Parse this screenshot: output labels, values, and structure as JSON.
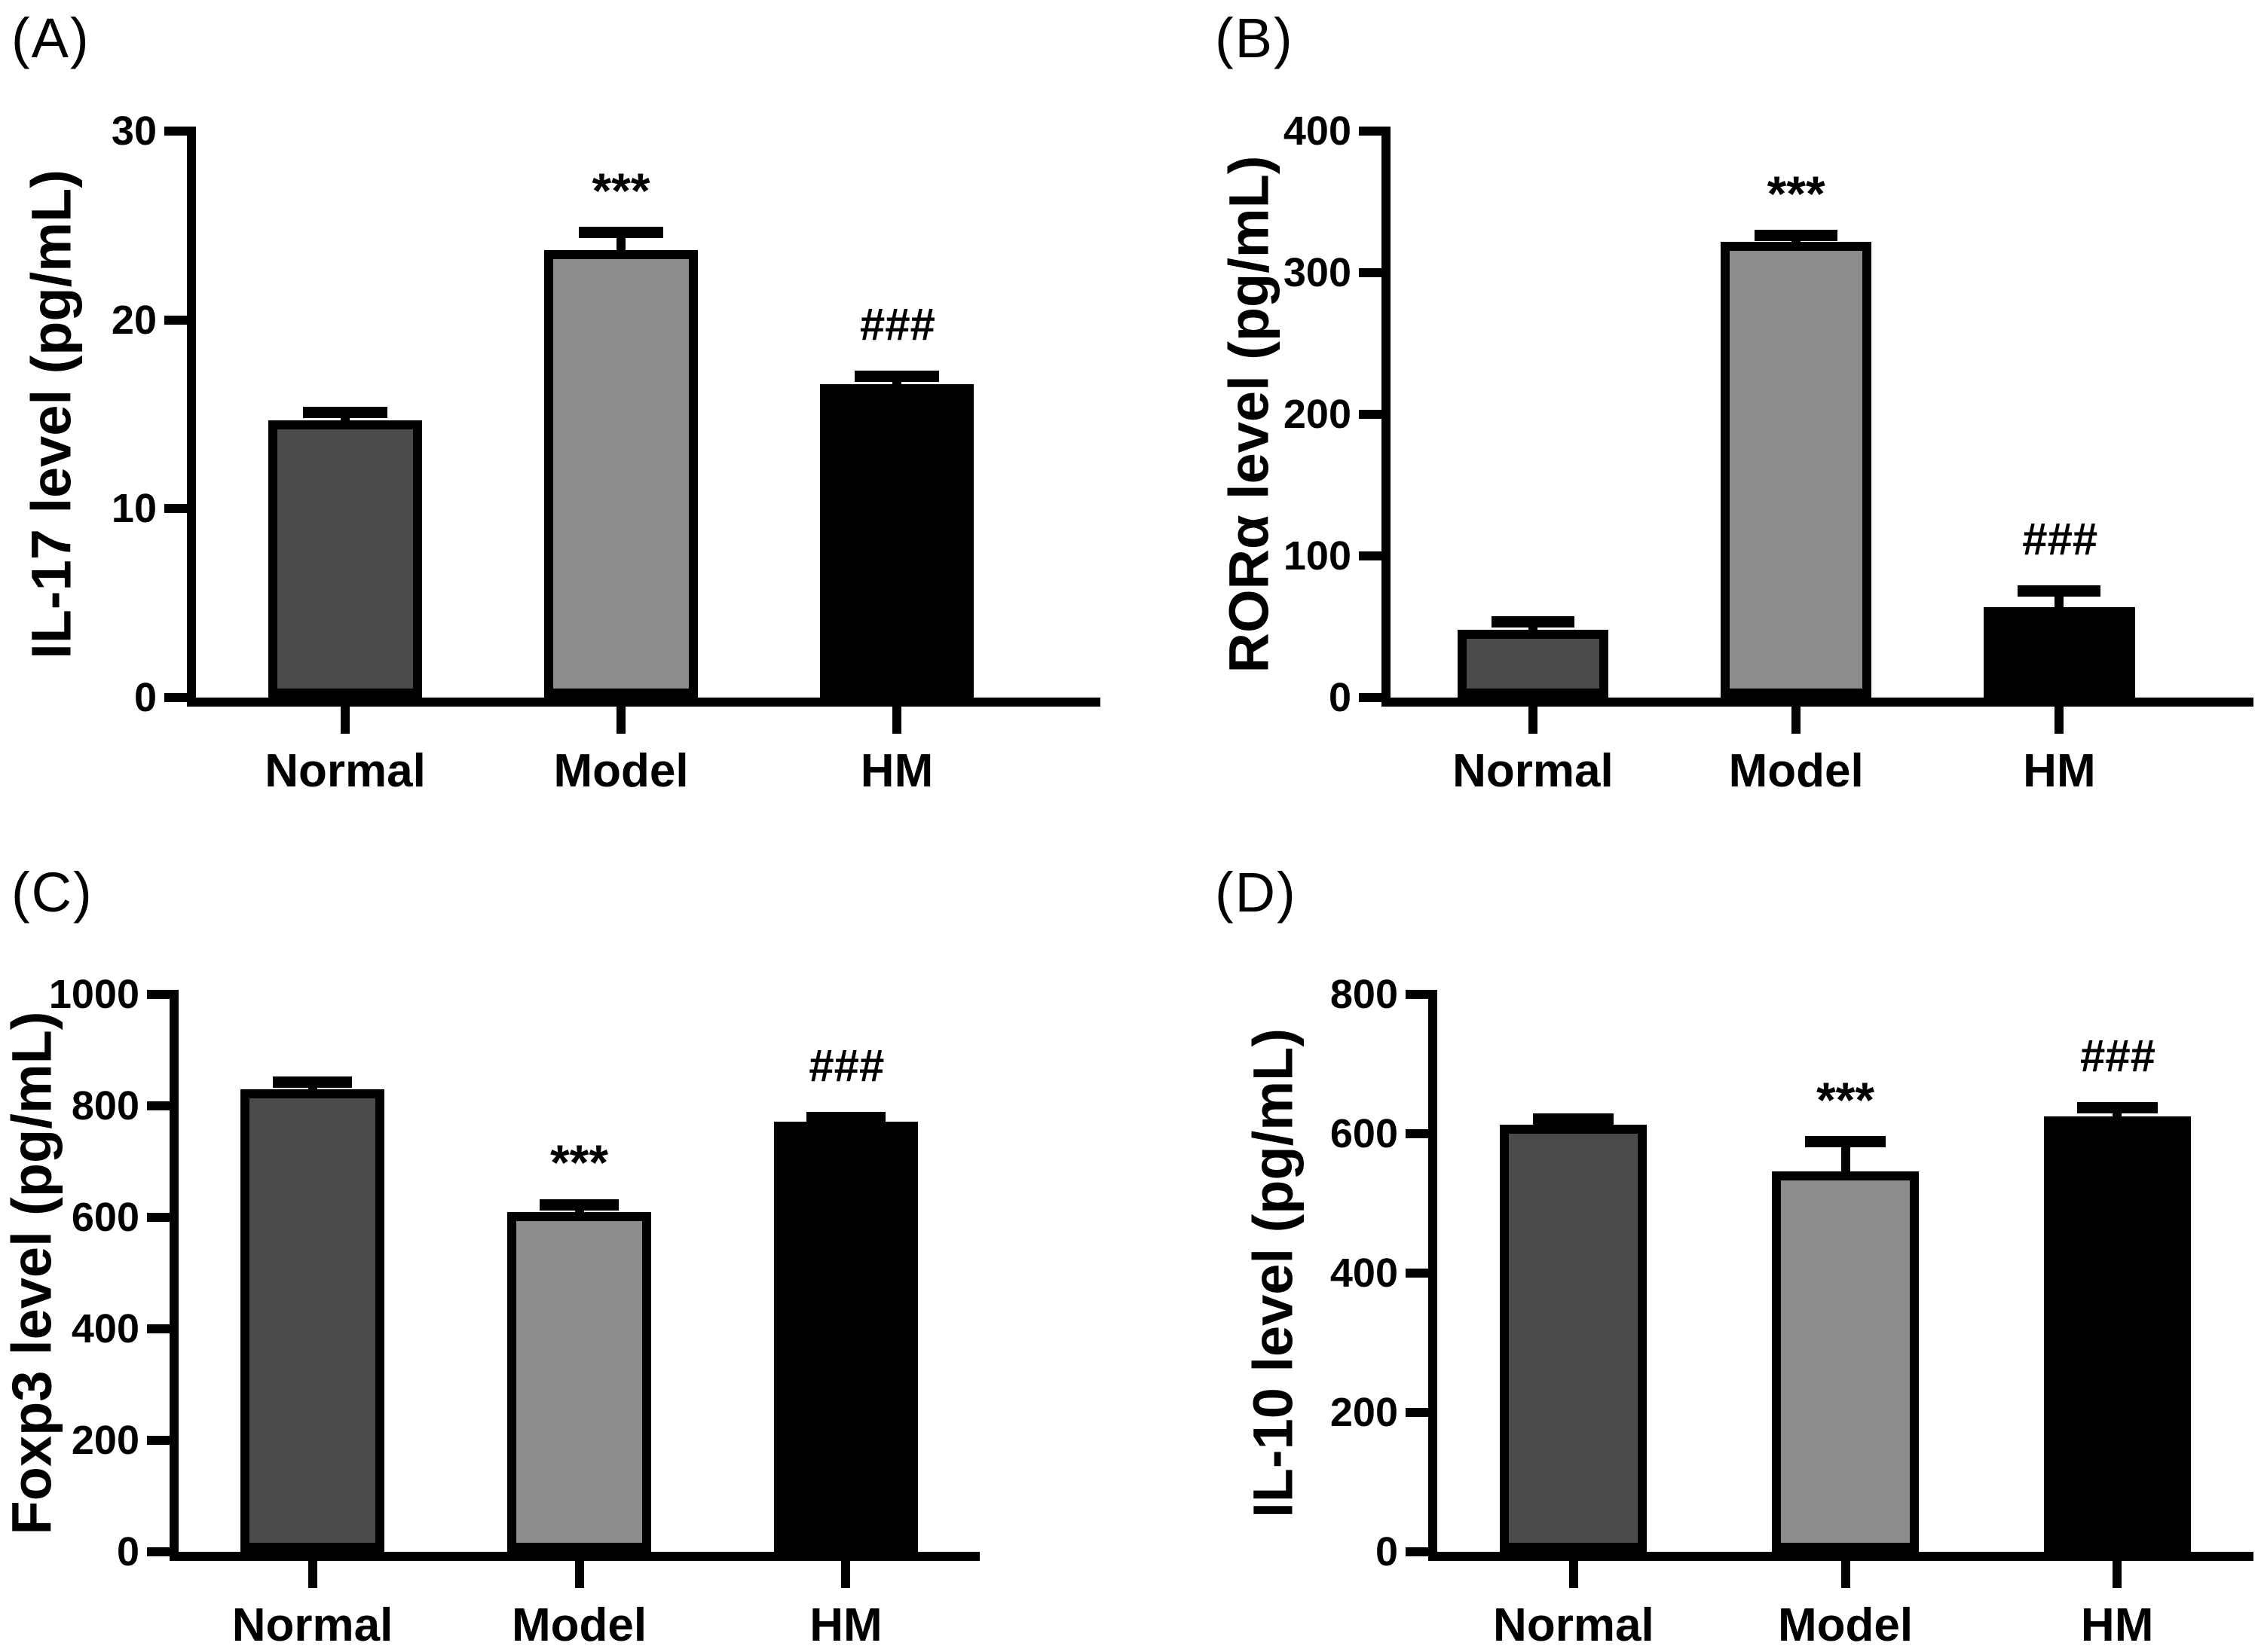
{
  "colors": {
    "bar_normal": "#4a4a4a",
    "bar_model": "#8c8c8c",
    "bar_hm": "#000000",
    "axis": "#000000",
    "background": "#ffffff"
  },
  "chart_data": [
    {
      "type": "bar",
      "panel_label": "(A)",
      "ylabel": "IL-17 level (pg/mL)",
      "xlabel": "",
      "title": "",
      "categories": [
        "Normal",
        "Model",
        "HM"
      ],
      "values": [
        14.7,
        23.7,
        16.6
      ],
      "errors": [
        0.4,
        0.9,
        0.4
      ],
      "annotations": [
        "",
        "***",
        "###"
      ],
      "ylim": [
        0,
        30
      ],
      "yticks": [
        0,
        10,
        20,
        30
      ],
      "bar_colors": [
        "#4a4a4a",
        "#8c8c8c",
        "#000000"
      ],
      "grid": "off",
      "legend": "none"
    },
    {
      "type": "bar",
      "panel_label": "(B)",
      "ylabel": "RORα level (pg/mL)",
      "xlabel": "",
      "title": "",
      "categories": [
        "Normal",
        "Model",
        "HM"
      ],
      "values": [
        48,
        322,
        64
      ],
      "errors": [
        5,
        4,
        11
      ],
      "annotations": [
        "",
        "***",
        "###"
      ],
      "ylim": [
        0,
        400
      ],
      "yticks": [
        0,
        100,
        200,
        300,
        400
      ],
      "bar_colors": [
        "#4a4a4a",
        "#8c8c8c",
        "#000000"
      ],
      "grid": "off",
      "legend": "none"
    },
    {
      "type": "bar",
      "panel_label": "(C)",
      "ylabel": "Foxp3 level (pg/mL)",
      "xlabel": "",
      "title": "",
      "categories": [
        "Normal",
        "Model",
        "HM"
      ],
      "values": [
        830,
        610,
        772
      ],
      "errors": [
        12,
        12,
        6
      ],
      "annotations": [
        "",
        "***",
        "###"
      ],
      "ylim": [
        0,
        1000
      ],
      "yticks": [
        0,
        200,
        400,
        600,
        800,
        1000
      ],
      "bar_colors": [
        "#4a4a4a",
        "#8c8c8c",
        "#000000"
      ],
      "grid": "off",
      "legend": "none"
    },
    {
      "type": "bar",
      "panel_label": "(D)",
      "ylabel": "IL-10 level (pg/mL)",
      "xlabel": "",
      "title": "",
      "categories": [
        "Normal",
        "Model",
        "HM"
      ],
      "values": [
        613,
        546,
        625
      ],
      "errors": [
        8,
        42,
        12
      ],
      "annotations": [
        "",
        "***",
        "###"
      ],
      "ylim": [
        0,
        800
      ],
      "yticks": [
        0,
        200,
        400,
        600,
        800
      ],
      "bar_colors": [
        "#4a4a4a",
        "#8c8c8c",
        "#000000"
      ],
      "grid": "off",
      "legend": "none"
    }
  ]
}
